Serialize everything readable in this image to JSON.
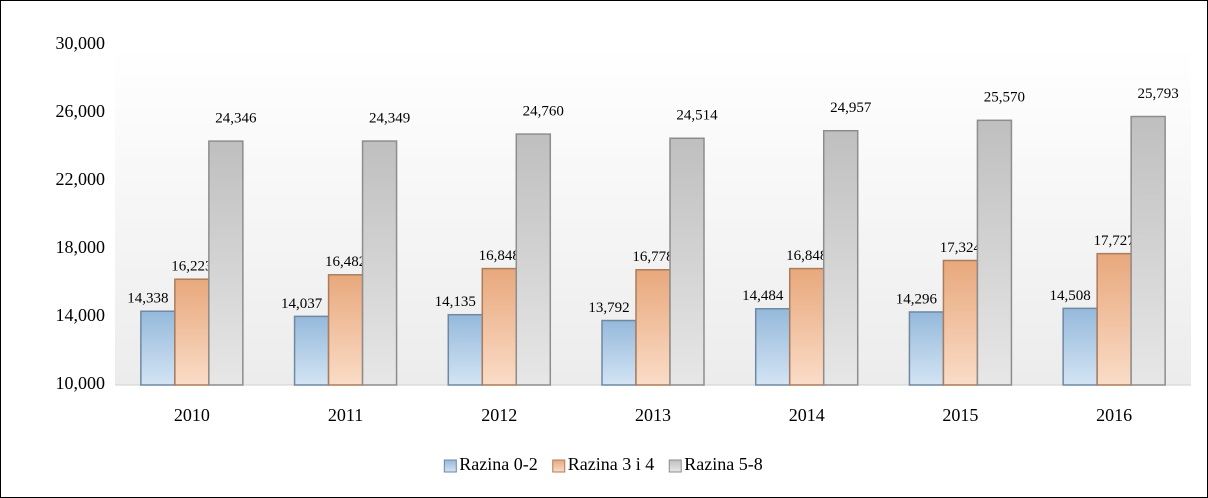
{
  "chart_data": {
    "type": "bar",
    "categories": [
      "2010",
      "2011",
      "2012",
      "2013",
      "2014",
      "2015",
      "2016"
    ],
    "series": [
      {
        "name": "Razina 0-2",
        "color": "#9dc3e6",
        "values": [
          14338,
          14037,
          14135,
          13792,
          14484,
          14296,
          14508
        ],
        "value_labels": [
          "14,338",
          "14,037",
          "14,135",
          "13,792",
          "14,484",
          "14,296",
          "14,508"
        ]
      },
      {
        "name": "Razina 3 i 4",
        "color": "#f4b183",
        "values": [
          16223,
          16482,
          16848,
          16778,
          16848,
          17324,
          17727
        ],
        "value_labels": [
          "16,223",
          "16,482",
          "16,848",
          "16,778",
          "16,848",
          "17,324",
          "17,727"
        ]
      },
      {
        "name": "Razina 5-8",
        "color": "#c9c9c9",
        "values": [
          24346,
          24349,
          24760,
          24514,
          24957,
          25570,
          25793
        ],
        "value_labels": [
          "24,346",
          "24,349",
          "24,760",
          "24,514",
          "24,957",
          "25,570",
          "25,793"
        ]
      }
    ],
    "ylim": [
      10000,
      30000
    ],
    "yticks": [
      {
        "value": 10000,
        "label": "10,000"
      },
      {
        "value": 14000,
        "label": "14,000"
      },
      {
        "value": 18000,
        "label": "18,000"
      },
      {
        "value": 22000,
        "label": "22,000"
      },
      {
        "value": 26000,
        "label": "26,000"
      },
      {
        "value": 30000,
        "label": "30,000"
      }
    ],
    "grid": false,
    "legend": "bottom"
  }
}
